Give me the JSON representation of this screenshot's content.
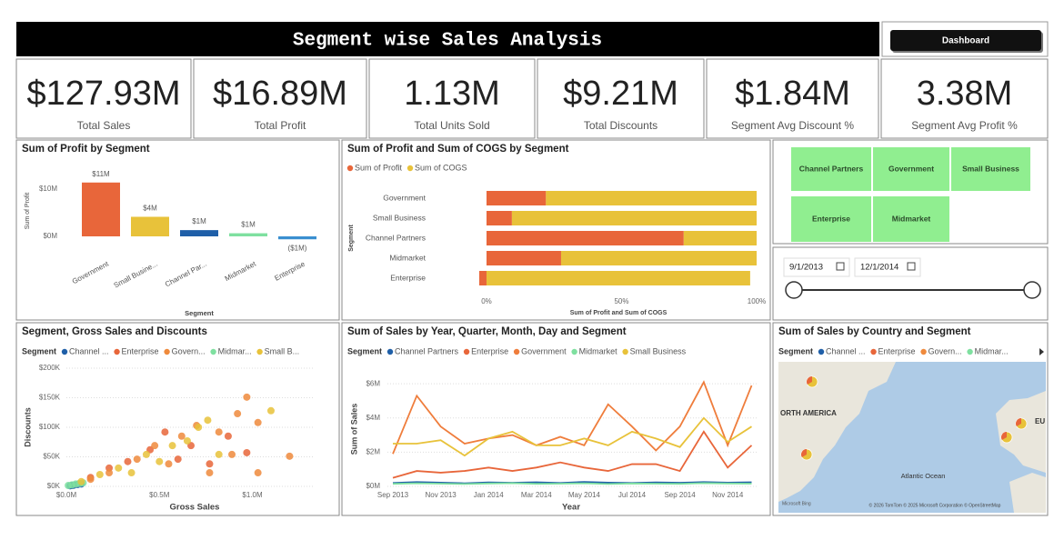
{
  "header": {
    "title": "Segment wise Sales Analysis",
    "button": "Dashboard"
  },
  "kpis": [
    {
      "value": "$127.93M",
      "label": "Total Sales"
    },
    {
      "value": "$16.89M",
      "label": "Total Profit"
    },
    {
      "value": "1.13M",
      "label": "Total Units Sold"
    },
    {
      "value": "$9.21M",
      "label": "Total Discounts"
    },
    {
      "value": "$1.84M",
      "label": "Segment Avg Discount %"
    },
    {
      "value": "3.38M",
      "label": "Segment Avg Profit %"
    }
  ],
  "segment_slicer": {
    "items": [
      "Channel Partners",
      "Government",
      "Small Business",
      "Enterprise",
      "Midmarket"
    ]
  },
  "date_slicer": {
    "start": "9/1/2013",
    "end": "12/1/2014"
  },
  "chart_data": [
    {
      "type": "bar",
      "title": "Sum of Profit by Segment",
      "x_label": "Segment",
      "y_label": "Sum of Profit",
      "categories": [
        "Government",
        "Small Busine...",
        "Channel Par...",
        "Midmarket",
        "Enterprise"
      ],
      "values": [
        11390000,
        4140000,
        1320000,
        660000,
        -620000
      ],
      "value_labels": [
        "$11M",
        "$4M",
        "$1M",
        "$1M",
        "($1M)"
      ],
      "colors": [
        "#e8663a",
        "#e8c23a",
        "#1f5fa8",
        "#7fe0a0",
        "#3a8fd0"
      ],
      "ylim": [
        -3000000,
        13000000
      ],
      "yticks": [
        {
          "value": 0,
          "label": "$0M"
        },
        {
          "value": 10000000,
          "label": "$10M"
        }
      ]
    },
    {
      "type": "stacked_hbar",
      "title": "Sum of Profit and Sum of COGS by Segment",
      "x_label": "Sum of Profit and Sum of COGS",
      "y_label": "Segment",
      "categories": [
        "Government",
        "Small Business",
        "Channel Partners",
        "Midmarket",
        "Enterprise"
      ],
      "series": [
        {
          "name": "Sum of Profit",
          "color": "#e8663a",
          "values": [
            22,
            9.4,
            73,
            27.6,
            -2.7
          ]
        },
        {
          "name": "Sum of COGS",
          "color": "#e8c23a",
          "values": [
            78,
            90.6,
            27,
            72.4,
            97.6
          ]
        }
      ],
      "xlim": [
        -4,
        101
      ],
      "xticks": [
        {
          "value": 0,
          "label": "0%"
        },
        {
          "value": 50,
          "label": "50%"
        },
        {
          "value": 100,
          "label": "100%"
        }
      ]
    },
    {
      "type": "scatter",
      "title": "Segment, Gross Sales and Discounts",
      "legend_title": "Segment",
      "x_label": "Gross Sales",
      "y_label": "Discounts",
      "series": [
        {
          "name": "Channel ...",
          "color": "#1f5fa8",
          "x": [
            20000,
            40000,
            60000,
            30000,
            80000
          ],
          "values": [
            1000,
            2000,
            3000,
            1500,
            4000
          ]
        },
        {
          "name": "Enterprise",
          "color": "#e8663a",
          "x": [
            530000,
            670000,
            870000,
            330000,
            230000,
            450000,
            600000,
            970000,
            130000,
            770000
          ],
          "values": [
            92000,
            69000,
            85000,
            42000,
            31000,
            62000,
            46000,
            57000,
            15000,
            38000
          ]
        },
        {
          "name": "Govern...",
          "color": "#ef8a3c",
          "x": [
            475000,
            700000,
            970000,
            1030000,
            1030000,
            1200000,
            890000,
            620000,
            380000,
            230000,
            820000,
            920000,
            550000,
            770000,
            130000
          ],
          "values": [
            69000,
            103000,
            151000,
            108000,
            23000,
            51000,
            54000,
            85000,
            46000,
            23000,
            92000,
            123000,
            38000,
            23000,
            12000
          ]
        },
        {
          "name": "Midmar...",
          "color": "#7fe0a0",
          "x": [
            10000,
            30000,
            50000,
            70000,
            90000
          ],
          "values": [
            1500,
            2500,
            4000,
            5000,
            6000
          ]
        },
        {
          "name": "Small B...",
          "color": "#e8c23a",
          "x": [
            760000,
            1100000,
            710000,
            570000,
            430000,
            280000,
            180000,
            820000,
            650000,
            500000,
            350000,
            80000
          ],
          "values": [
            112000,
            128000,
            100000,
            69000,
            54000,
            31000,
            20000,
            54000,
            77000,
            42000,
            23000,
            8000
          ]
        }
      ],
      "xlim": [
        0,
        1330000
      ],
      "xticks": [
        {
          "value": 0,
          "label": "$0.0M"
        },
        {
          "value": 500000,
          "label": "$0.5M"
        },
        {
          "value": 1000000,
          "label": "$1.0M"
        }
      ],
      "ylim": [
        0,
        210000
      ],
      "yticks": [
        {
          "value": 0,
          "label": "$0K"
        },
        {
          "value": 50000,
          "label": "$50K"
        },
        {
          "value": 100000,
          "label": "$100K"
        },
        {
          "value": 150000,
          "label": "$150K"
        },
        {
          "value": 200000,
          "label": "$200K"
        }
      ],
      "grid": true
    },
    {
      "type": "line",
      "title": "Sum of Sales by Year, Quarter, Month, Day and Segment",
      "legend_title": "Segment",
      "x_label": "Year",
      "y_label": "Sum of Sales",
      "categories": [
        "Sep 2013",
        null,
        "Nov 2013",
        null,
        "Jan 2014",
        null,
        "Mar 2014",
        null,
        "May 2014",
        null,
        "Jul 2014",
        null,
        "Sep 2014",
        null,
        "Nov 2014",
        null
      ],
      "series": [
        {
          "name": "Channel Partners",
          "color": "#1f5fa8",
          "values": [
            200000,
            250000,
            220000,
            180000,
            230000,
            210000,
            240000,
            200000,
            260000,
            220000,
            200000,
            230000,
            210000,
            250000,
            220000,
            240000
          ]
        },
        {
          "name": "Enterprise",
          "color": "#e8663a",
          "values": [
            500000,
            900000,
            800000,
            900000,
            1100000,
            900000,
            1100000,
            1400000,
            1100000,
            900000,
            1300000,
            1300000,
            900000,
            3200000,
            1100000,
            2400000
          ]
        },
        {
          "name": "Government",
          "color": "#ef7d3c",
          "values": [
            1900000,
            5300000,
            3500000,
            2500000,
            2800000,
            3000000,
            2400000,
            2900000,
            2400000,
            4800000,
            3500000,
            2100000,
            3500000,
            6100000,
            2400000,
            5900000
          ]
        },
        {
          "name": "Midmarket",
          "color": "#7fe0a0",
          "values": [
            150000,
            180000,
            160000,
            140000,
            170000,
            190000,
            150000,
            160000,
            180000,
            140000,
            170000,
            160000,
            150000,
            190000,
            170000,
            160000
          ]
        },
        {
          "name": "Small Business",
          "color": "#e8c23a",
          "values": [
            2500000,
            2500000,
            2700000,
            1800000,
            2800000,
            3200000,
            2400000,
            2400000,
            2800000,
            2400000,
            3200000,
            2800000,
            2300000,
            4000000,
            2600000,
            3500000
          ]
        }
      ],
      "ylim": [
        0,
        6600000
      ],
      "yticks": [
        {
          "value": 0,
          "label": "$0M"
        },
        {
          "value": 2000000,
          "label": "$2M"
        },
        {
          "value": 4000000,
          "label": "$4M"
        },
        {
          "value": 6000000,
          "label": "$6M"
        }
      ],
      "grid": true
    },
    {
      "type": "map",
      "title": "Sum of Sales by Country and Segment",
      "legend_title": "Segment",
      "legend": [
        {
          "name": "Channel ...",
          "color": "#1f5fa8"
        },
        {
          "name": "Enterprise",
          "color": "#e8663a"
        },
        {
          "name": "Govern...",
          "color": "#ef8a3c"
        },
        {
          "name": "Midmar...",
          "color": "#7fe0a0"
        }
      ],
      "labels": [
        "ORTH AMERICA",
        "EU",
        "Atlantic Ocean"
      ],
      "logo": "Microsoft Bing",
      "attribution": "© 2026 TomTom © 2025 Microsoft Corporation © OpenStreetMap"
    }
  ]
}
